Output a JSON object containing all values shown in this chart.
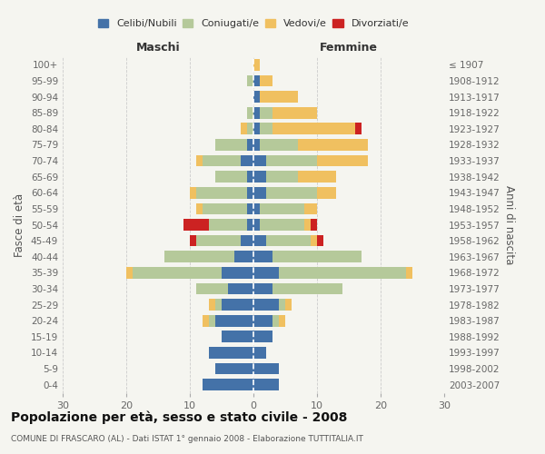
{
  "age_groups": [
    "0-4",
    "5-9",
    "10-14",
    "15-19",
    "20-24",
    "25-29",
    "30-34",
    "35-39",
    "40-44",
    "45-49",
    "50-54",
    "55-59",
    "60-64",
    "65-69",
    "70-74",
    "75-79",
    "80-84",
    "85-89",
    "90-94",
    "95-99",
    "100+"
  ],
  "birth_years": [
    "2003-2007",
    "1998-2002",
    "1993-1997",
    "1988-1992",
    "1983-1987",
    "1978-1982",
    "1973-1977",
    "1968-1972",
    "1963-1967",
    "1958-1962",
    "1953-1957",
    "1948-1952",
    "1943-1947",
    "1938-1942",
    "1933-1937",
    "1928-1932",
    "1923-1927",
    "1918-1922",
    "1913-1917",
    "1908-1912",
    "≤ 1907"
  ],
  "colors": {
    "celibi": "#4472a8",
    "coniugati": "#b5c99a",
    "vedovi": "#f0c060",
    "divorziati": "#cc2222"
  },
  "males": {
    "celibi": [
      8,
      6,
      7,
      5,
      6,
      5,
      4,
      5,
      3,
      2,
      1,
      1,
      1,
      1,
      2,
      1,
      0,
      0,
      0,
      0,
      0
    ],
    "coniugati": [
      0,
      0,
      0,
      0,
      1,
      1,
      5,
      14,
      11,
      7,
      6,
      7,
      8,
      5,
      6,
      5,
      1,
      1,
      0,
      1,
      0
    ],
    "vedovi": [
      0,
      0,
      0,
      0,
      1,
      1,
      0,
      1,
      0,
      0,
      0,
      1,
      1,
      0,
      1,
      0,
      1,
      0,
      0,
      0,
      0
    ],
    "divorziati": [
      0,
      0,
      0,
      0,
      0,
      0,
      0,
      0,
      0,
      1,
      4,
      0,
      0,
      0,
      0,
      0,
      0,
      0,
      0,
      0,
      0
    ]
  },
  "females": {
    "celibi": [
      4,
      4,
      2,
      3,
      3,
      4,
      3,
      4,
      3,
      2,
      1,
      1,
      2,
      2,
      2,
      1,
      1,
      1,
      1,
      1,
      0
    ],
    "coniugati": [
      0,
      0,
      0,
      0,
      1,
      1,
      11,
      20,
      14,
      7,
      7,
      7,
      8,
      5,
      8,
      6,
      2,
      2,
      0,
      0,
      0
    ],
    "vedovi": [
      0,
      0,
      0,
      0,
      1,
      1,
      0,
      1,
      0,
      1,
      1,
      2,
      3,
      6,
      8,
      11,
      13,
      7,
      6,
      2,
      1
    ],
    "divorziati": [
      0,
      0,
      0,
      0,
      0,
      0,
      0,
      0,
      0,
      1,
      1,
      0,
      0,
      0,
      0,
      0,
      1,
      0,
      0,
      0,
      0
    ]
  },
  "title": "Popolazione per età, sesso e stato civile - 2008",
  "subtitle": "COMUNE DI FRASCARO (AL) - Dati ISTAT 1° gennaio 2008 - Elaborazione TUTTITALIA.IT",
  "ylabel_left": "Fasce di età",
  "ylabel_right": "Anni di nascita",
  "xlabel_left": "Maschi",
  "xlabel_right": "Femmine",
  "xlim": 30,
  "bg_color": "#f5f5f0",
  "grid_color": "#cccccc"
}
